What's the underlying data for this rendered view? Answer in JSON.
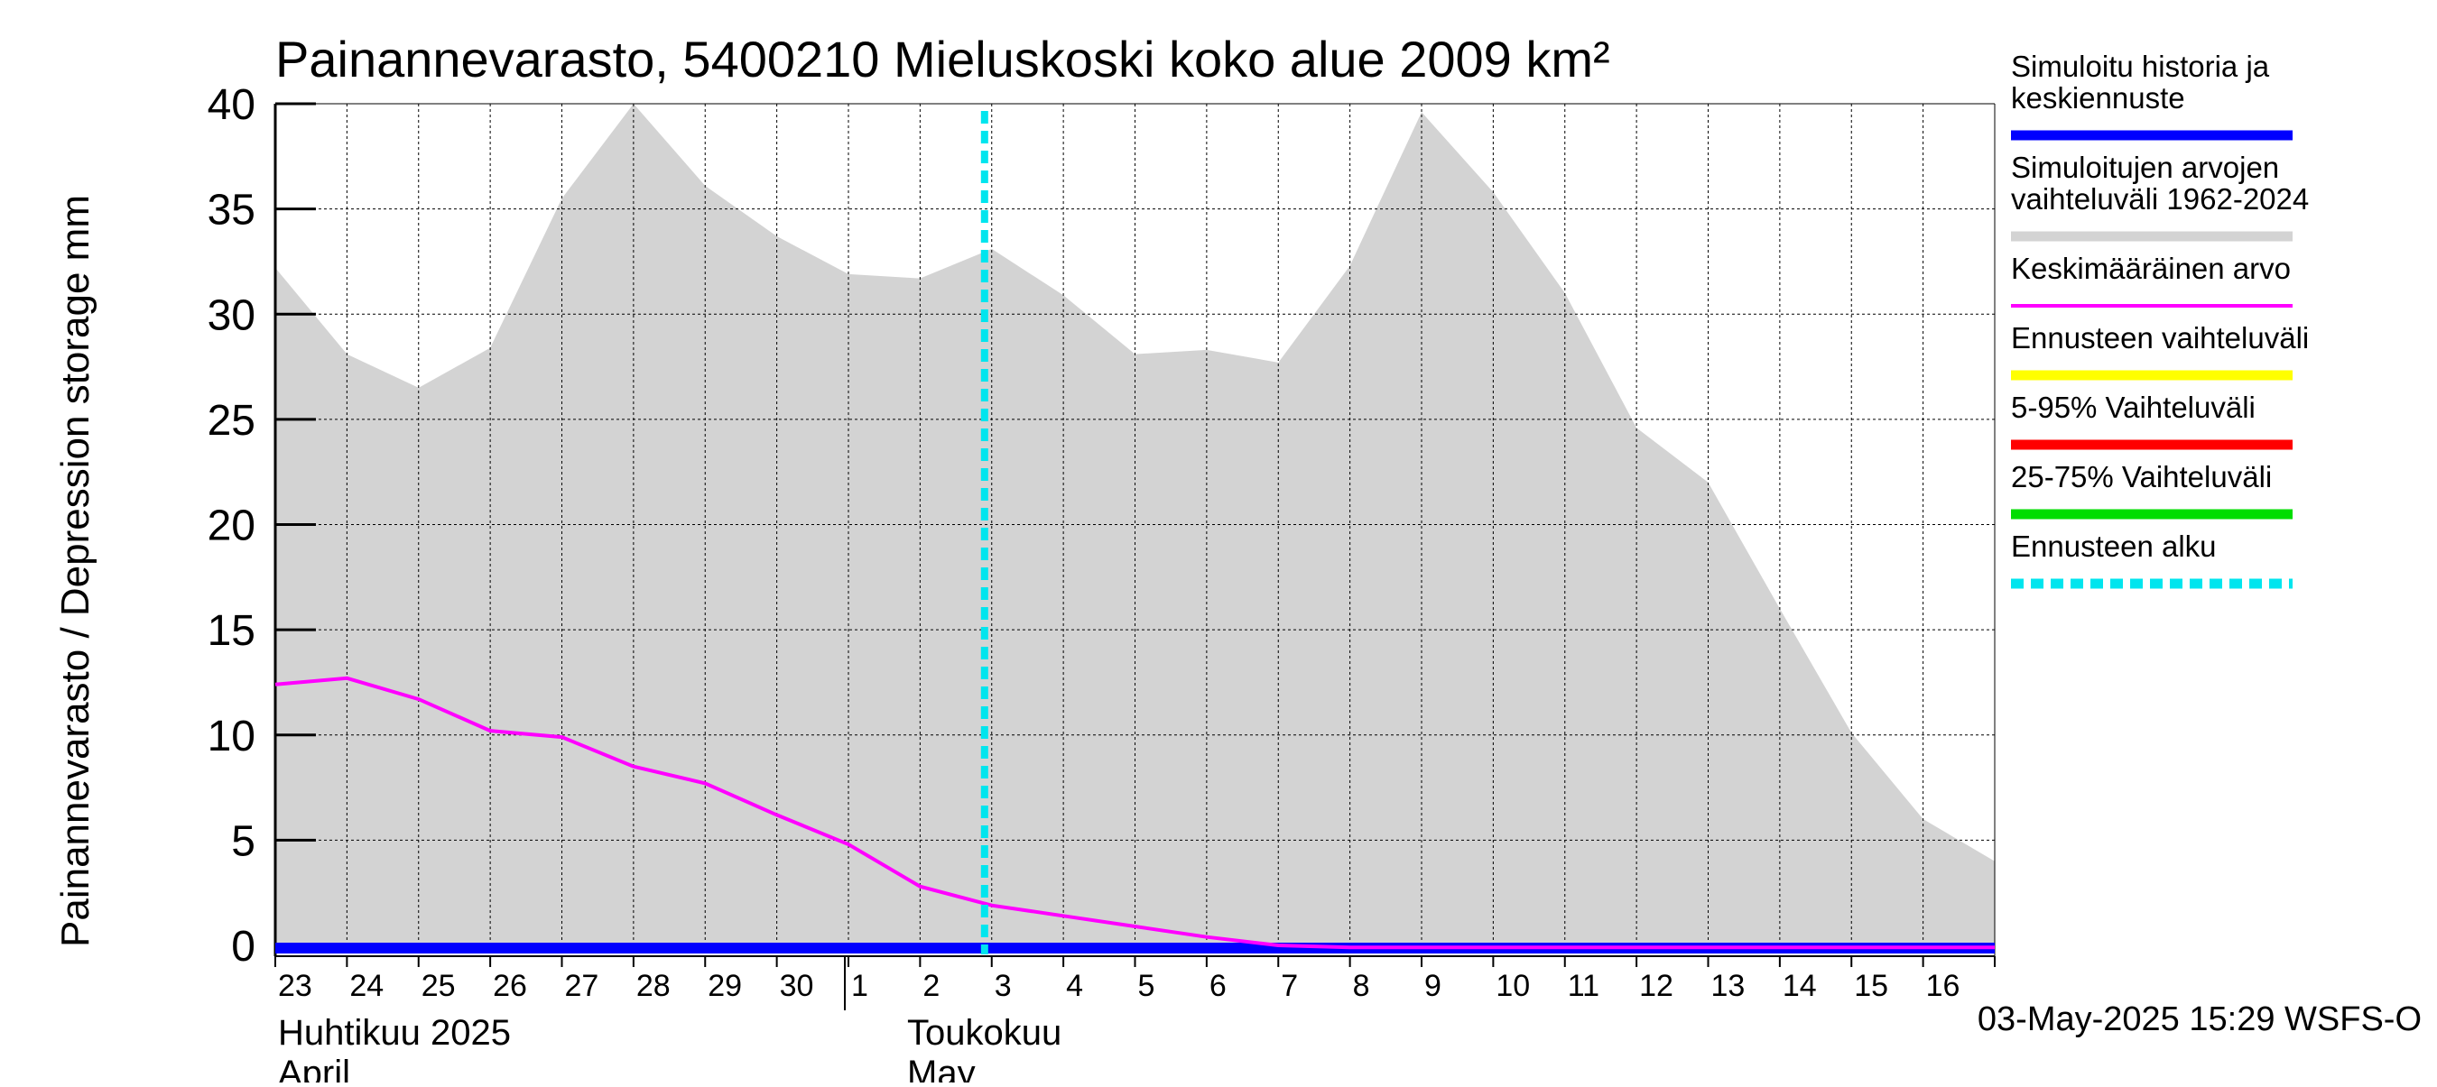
{
  "chart_data": {
    "type": "area",
    "title": "Painannevarasto, 5400210 Mieluskoski koko alue 2009 km²",
    "ylabel": "Painannevarasto / Depression storage    mm",
    "ylim": [
      0,
      40
    ],
    "yticks": [
      0,
      5,
      10,
      15,
      20,
      25,
      30,
      35,
      40
    ],
    "x_tick_labels": [
      "23",
      "24",
      "25",
      "26",
      "27",
      "28",
      "29",
      "30",
      "1",
      "2",
      "3",
      "4",
      "5",
      "6",
      "7",
      "8",
      "9",
      "10",
      "11",
      "12",
      "13",
      "14",
      "15",
      "16"
    ],
    "month_labels": [
      {
        "fi": "Huhtikuu  2025",
        "en": "April"
      },
      {
        "fi": "Toukokuu",
        "en": "May"
      }
    ],
    "grid": true,
    "legend_position": "right",
    "forecast_start_day_index": 9.9,
    "series": [
      {
        "name": "Simuloitujen arvojen vaihteluväli 1962-2024",
        "role": "range",
        "color": "#d3d3d3",
        "x": [
          0,
          1,
          2,
          3,
          4,
          5,
          6,
          7,
          8,
          9,
          10,
          11,
          12,
          13,
          14,
          15,
          16,
          17,
          18,
          19,
          20,
          21,
          22,
          23,
          24
        ],
        "upper": [
          32.2,
          28.1,
          26.5,
          28.4,
          35.5,
          40.0,
          36.1,
          33.7,
          31.9,
          31.7,
          33.1,
          30.9,
          28.1,
          28.3,
          27.7,
          32.3,
          39.6,
          35.8,
          31.0,
          24.6,
          22.0,
          16.0,
          10.1,
          6.0,
          4.0
        ],
        "lower": [
          0,
          0,
          0,
          0,
          0,
          0,
          0,
          0,
          0,
          0,
          0,
          0,
          0,
          0,
          0,
          0,
          0,
          0,
          0,
          0,
          0,
          0,
          0,
          0,
          0
        ]
      },
      {
        "name": "Keskimääräinen arvo",
        "role": "mean",
        "color": "#ff00ff",
        "x": [
          0,
          1,
          2,
          3,
          4,
          5,
          6,
          7,
          8,
          9,
          10,
          11,
          12,
          13,
          14,
          15,
          16,
          17,
          18,
          19,
          20,
          21,
          22,
          23,
          24
        ],
        "values": [
          12.4,
          12.7,
          11.7,
          10.2,
          9.9,
          8.5,
          7.7,
          6.2,
          4.8,
          2.8,
          1.9,
          1.4,
          0.9,
          0.4,
          0.0,
          -0.1,
          -0.1,
          -0.1,
          -0.1,
          -0.1,
          -0.1,
          -0.1,
          -0.1,
          -0.1,
          -0.1
        ]
      },
      {
        "name": "Simuloitu historia ja keskiennuste",
        "role": "history",
        "color": "#0000ff",
        "x": [
          0,
          24
        ],
        "values": [
          0,
          0
        ]
      }
    ],
    "legend": [
      {
        "label": "Simuloitu historia ja keskiennuste",
        "color": "#0000ff",
        "style": "thick"
      },
      {
        "label": "Simuloitujen arvojen vaihteluväli 1962-2024",
        "color": "#d3d3d3",
        "style": "thick"
      },
      {
        "label": "Keskimääräinen arvo",
        "color": "#ff00ff",
        "style": "thin"
      },
      {
        "label": "Ennusteen vaihteluväli",
        "color": "#ffff00",
        "style": "thick"
      },
      {
        "label": "5-95% Vaihteluväli",
        "color": "#ff0000",
        "style": "thick"
      },
      {
        "label": "25-75% Vaihteluväli",
        "color": "#00dd00",
        "style": "thick"
      },
      {
        "label": "Ennusteen alku",
        "color": "#00e5ee",
        "style": "dashed"
      }
    ],
    "footer": "03-May-2025 15:29 WSFS-O"
  }
}
